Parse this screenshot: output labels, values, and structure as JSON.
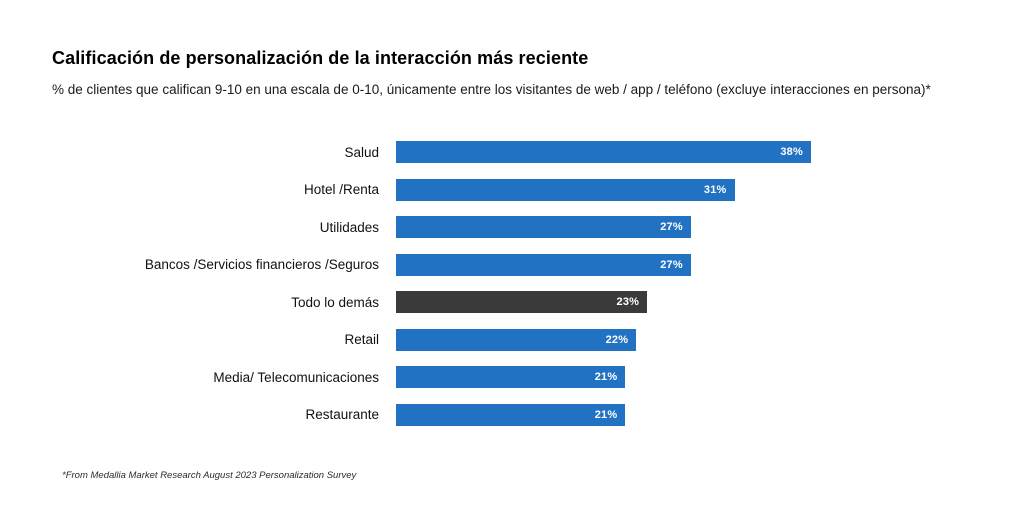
{
  "page": {
    "background_color": "#ffffff"
  },
  "header": {
    "title": "Calificación de personalización de la interacción más reciente",
    "subtitle": "% de clientes que califican 9-10 en una escala de 0-10, únicamente entre los visitantes de web / app / teléfono (excluye interacciones en persona)*"
  },
  "footnote": "*From Medallia Market Research August 2023 Personalization Survey",
  "chart_data": {
    "type": "bar",
    "orientation": "horizontal",
    "title": "Calificación de personalización de la interacción más reciente",
    "subtitle": "% de clientes que califican 9-10 en una escala de 0-10, únicamente entre los visitantes de web / app / teléfono (excluye interacciones en persona)*",
    "footnote": "*From Medallia Market Research August 2023 Personalization Survey",
    "categories": [
      "Salud",
      "Hotel /Renta",
      "Utilidades",
      "Bancos /Servicios financieros /Seguros",
      "Todo lo demás",
      "Retail",
      "Media/ Telecomunicaciones",
      "Restaurante"
    ],
    "values": [
      38,
      31,
      27,
      27,
      23,
      22,
      21,
      21
    ],
    "value_labels": [
      "38%",
      "31%",
      "27%",
      "27%",
      "23%",
      "22%",
      "21%",
      "21%"
    ],
    "highlight_index": 4,
    "highlight_category": "Todo lo demás",
    "xlim": [
      0,
      38
    ],
    "axis_visible": false,
    "grid": false,
    "legend": "none",
    "value_label_position": "inside-end",
    "colors": {
      "bar_default": "#2272C4",
      "bar_highlight": "#3A3A3A",
      "value_label": "#FFFFFF",
      "category_label": "#111111"
    }
  }
}
